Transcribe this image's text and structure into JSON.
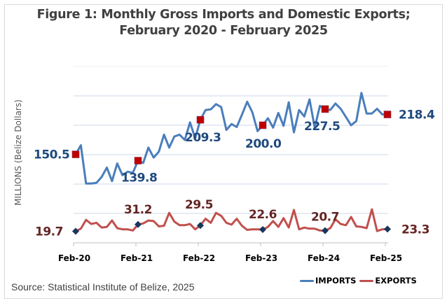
{
  "chart_data": {
    "type": "line",
    "title": "Figure 1: Monthly Gross Imports and Domestic Exports;",
    "subtitle": "February 2020 - February 2025",
    "xlabel": "",
    "ylabel": "MILLIONS (Belize Dollars)",
    "ylim": [
      0,
      300
    ],
    "grid": true,
    "gridlines": [
      50,
      100,
      150,
      200,
      250,
      300
    ],
    "x_tick_labels": [
      "Feb-20",
      "Feb-21",
      "Feb-22",
      "Feb-23",
      "Feb-24",
      "Feb-25"
    ],
    "x_tick_index": [
      0,
      12,
      24,
      36,
      48,
      60
    ],
    "legend_position": "bottom-right",
    "series": [
      {
        "name": "IMPORTS",
        "color": "#4a7ebb",
        "marker_color": "#c00000",
        "values": [
          150.5,
          166,
          101,
          101,
          102,
          112,
          128,
          105,
          135,
          115,
          121,
          119,
          139.8,
          136,
          162,
          145,
          155,
          184,
          162,
          181,
          184,
          175,
          205,
          178,
          209.3,
          226,
          227,
          236,
          231,
          192,
          202,
          197,
          218,
          240,
          222,
          190,
          200.0,
          212,
          196,
          221,
          199,
          239,
          188,
          226,
          215,
          244,
          196,
          233,
          227.5,
          226,
          237,
          228,
          214,
          200,
          207,
          255,
          220,
          220,
          228,
          218.4,
          218.4
        ],
        "labeled_points": [
          {
            "index": 0,
            "label": "150.5"
          },
          {
            "index": 12,
            "label": "139.8"
          },
          {
            "index": 24,
            "label": "209.3"
          },
          {
            "index": 36,
            "label": "200.0"
          },
          {
            "index": 48,
            "label": "227.5"
          },
          {
            "index": 60,
            "label": "218.4"
          }
        ]
      },
      {
        "name": "EXPORTS",
        "color": "#c0504d",
        "marker_color": "#17375e",
        "values": [
          19.7,
          24,
          39,
          32,
          34,
          26,
          27,
          38,
          25,
          23,
          23,
          21,
          31.2,
          33,
          38,
          37,
          28,
          29,
          51,
          36,
          30,
          30,
          32,
          23,
          29.5,
          41,
          34,
          51,
          46,
          34,
          31,
          41,
          29,
          22,
          23,
          23,
          22.6,
          27,
          37,
          27,
          42,
          26,
          56,
          23,
          26,
          24,
          24,
          21,
          20.7,
          25,
          40,
          32,
          30,
          44,
          28,
          27,
          25,
          57,
          20,
          23,
          23.3
        ],
        "labeled_points": [
          {
            "index": 0,
            "label": "19.7"
          },
          {
            "index": 12,
            "label": "31.2"
          },
          {
            "index": 24,
            "label": "29.5"
          },
          {
            "index": 36,
            "label": "22.6"
          },
          {
            "index": 48,
            "label": "20.7"
          },
          {
            "index": 60,
            "label": "23.3"
          }
        ]
      }
    ]
  },
  "source": "Source: Statistical Institute of Belize, 2025",
  "legend": {
    "imports_label": "IMPORTS",
    "exports_label": "EXPORTS"
  }
}
